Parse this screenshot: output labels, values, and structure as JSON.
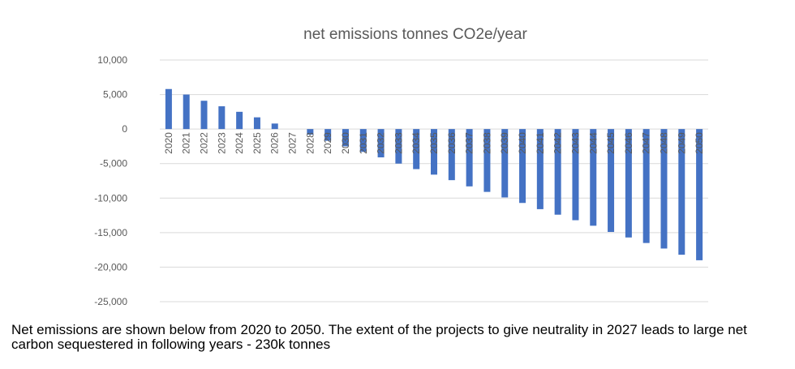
{
  "chart_data": {
    "type": "bar",
    "title": "net emissions tonnes CO2e/year",
    "xlabel": "",
    "ylabel": "",
    "categories": [
      "2020",
      "2021",
      "2022",
      "2023",
      "2024",
      "2025",
      "2026",
      "2027",
      "2028",
      "2029",
      "2030",
      "2031",
      "2032",
      "2033",
      "2034",
      "2035",
      "2036",
      "2037",
      "2038",
      "2039",
      "2040",
      "2041",
      "2042",
      "2043",
      "2044",
      "2045",
      "2046",
      "2047",
      "2048",
      "2049",
      "2050"
    ],
    "values": [
      5800,
      5000,
      4100,
      3300,
      2500,
      1700,
      800,
      0,
      -800,
      -1700,
      -2500,
      -3300,
      -4100,
      -5000,
      -5800,
      -6600,
      -7400,
      -8300,
      -9100,
      -9900,
      -10700,
      -11600,
      -12400,
      -13200,
      -14000,
      -14900,
      -15700,
      -16500,
      -17300,
      -18200,
      -19000
    ],
    "ylim": [
      -25000,
      10000
    ],
    "yticks": [
      10000,
      5000,
      0,
      -5000,
      -10000,
      -15000,
      -20000,
      -25000
    ],
    "ytick_labels": [
      "10,000",
      "5,000",
      "0",
      "-5,000",
      "-10,000",
      "-15,000",
      "-20,000",
      "-25,000"
    ],
    "grid": true,
    "legend": "none",
    "colors": {
      "bar": "#4472c4",
      "grid": "#d9d9d9",
      "text": "#595959"
    }
  },
  "caption": "Net emissions are shown below from 2020 to 2050.  The extent of the projects to give neutrality in 2027 leads to large net carbon sequestered in following years - 230k tonnes"
}
